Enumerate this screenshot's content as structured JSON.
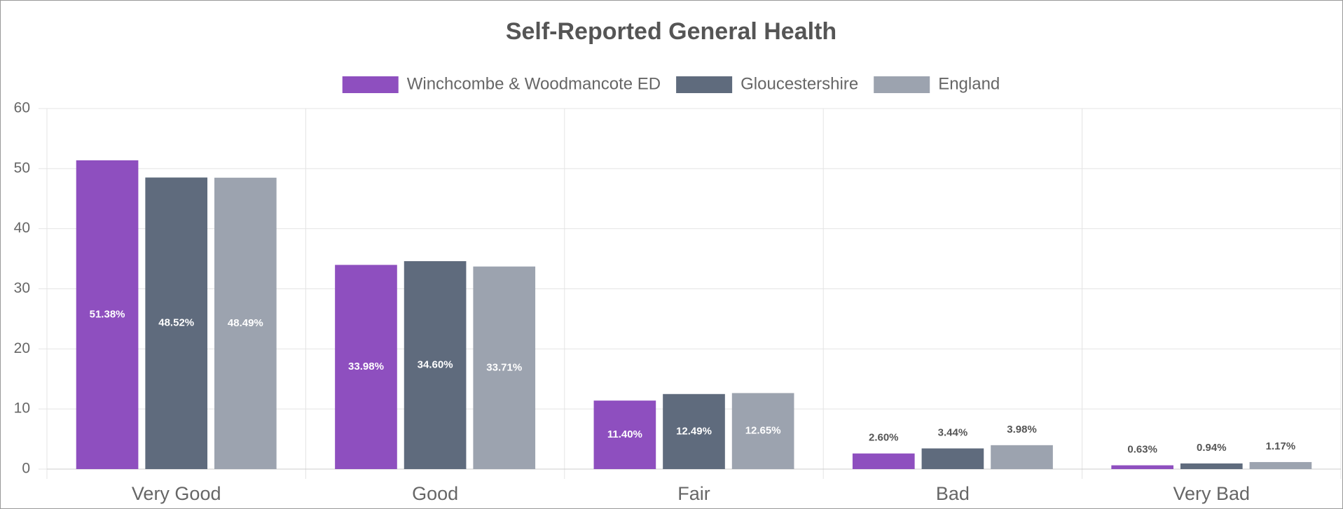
{
  "chart_data": {
    "type": "bar",
    "title": "Self-Reported General Health",
    "categories": [
      "Very Good",
      "Good",
      "Fair",
      "Bad",
      "Very Bad"
    ],
    "series": [
      {
        "name": "Winchcombe & Woodmancote ED",
        "color": "#8e4fbf",
        "values": [
          51.38,
          33.98,
          11.4,
          2.6,
          0.63
        ],
        "value_labels": [
          "51.38%",
          "33.98%",
          "11.40%",
          "2.60%",
          "0.63%"
        ]
      },
      {
        "name": "Gloucestershire",
        "color": "#5f6b7d",
        "values": [
          48.52,
          34.6,
          12.49,
          3.44,
          0.94
        ],
        "value_labels": [
          "48.52%",
          "34.60%",
          "12.49%",
          "3.44%",
          "0.94%"
        ]
      },
      {
        "name": "England",
        "color": "#9ca3af",
        "values": [
          48.49,
          33.71,
          12.65,
          3.98,
          1.17
        ],
        "value_labels": [
          "48.49%",
          "33.71%",
          "12.65%",
          "3.98%",
          "1.17%"
        ]
      }
    ],
    "ylim": [
      0,
      60
    ],
    "yticks": [
      0,
      10,
      20,
      30,
      40,
      50,
      60
    ],
    "grid": true,
    "legend": "top"
  }
}
